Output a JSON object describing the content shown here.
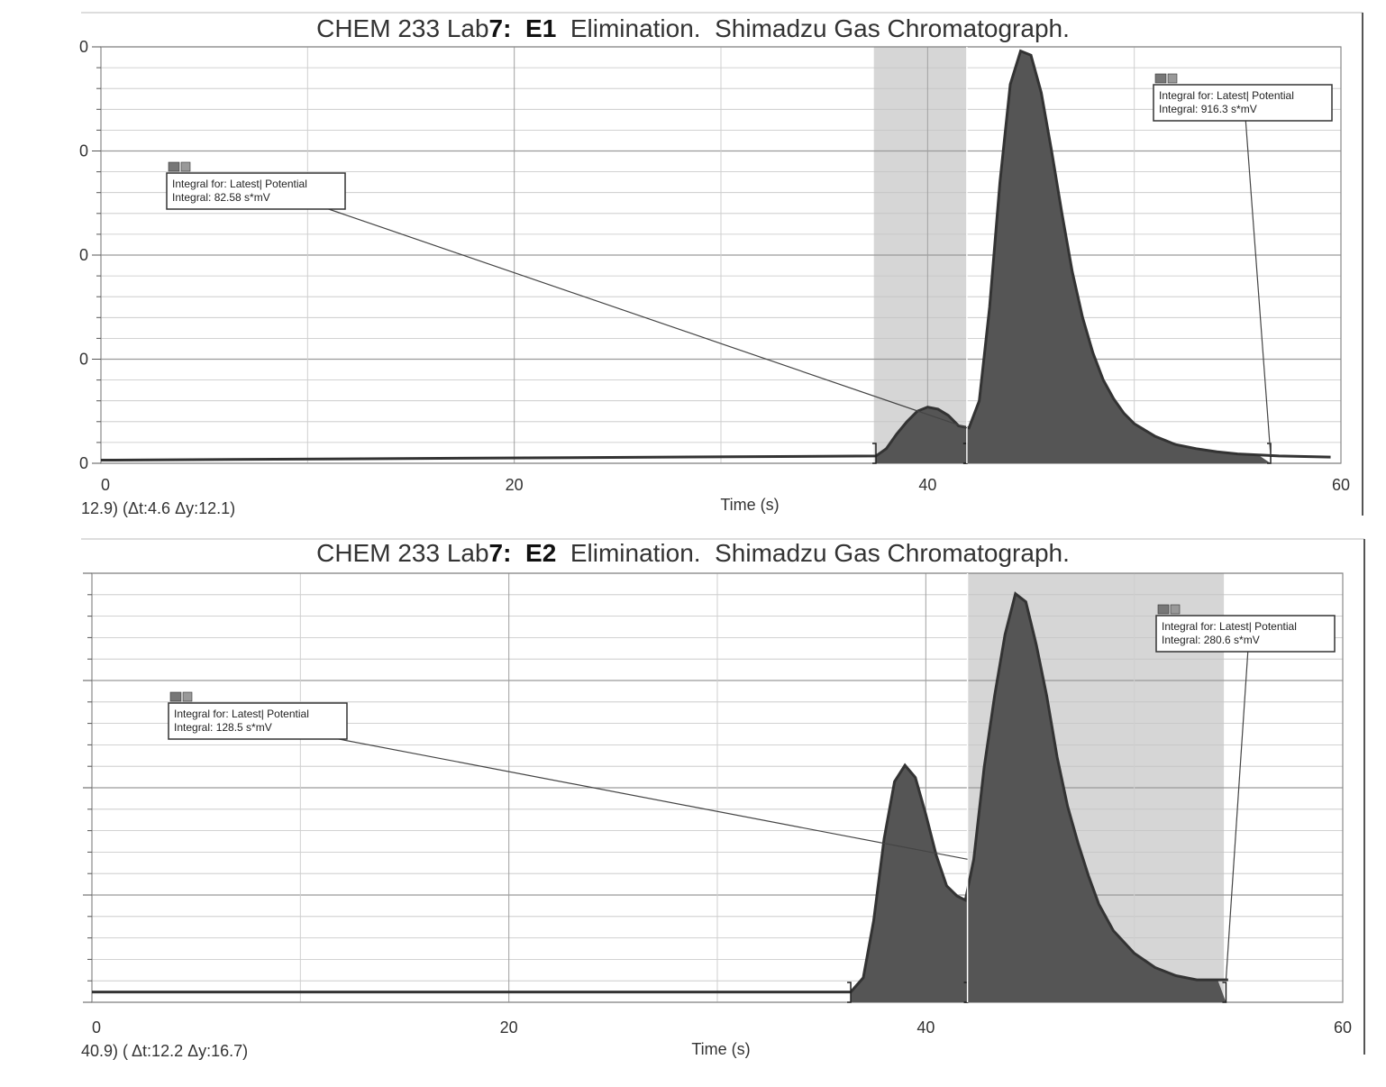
{
  "chart_data": [
    {
      "type": "area",
      "title": {
        "prefix": "CHEM 233 Lab",
        "lab_number": "7:",
        "experiment": "E1",
        "suffix": "Elimination.  Shimadzu Gas Chromatograph."
      },
      "xlabel": "Time (s)",
      "ylabel": "",
      "xlim": [
        0,
        60
      ],
      "ylim": [
        0,
        200
      ],
      "x_ticks": [
        "0",
        "20",
        "40",
        "60"
      ],
      "y_tick_labels": [
        "0",
        "0",
        "0",
        "0",
        "0"
      ],
      "grid": true,
      "readout": "12.9) (Δt:4.6 Δy:12.1)",
      "series": [
        {
          "x": [
            0,
            37.5,
            38.0,
            38.5,
            39.0,
            39.5,
            40.0,
            40.5,
            41.0,
            41.5,
            42.0,
            42.5,
            43.0,
            43.5,
            44.0,
            44.5,
            45.0,
            45.5,
            46.0,
            46.5,
            47.0,
            47.5,
            48.0,
            48.5,
            49.0,
            49.5,
            50.0,
            51.0,
            52.0,
            53.0,
            54.0,
            55.0,
            56.0,
            57.0,
            59.5
          ],
          "y": [
            1.5,
            3.5,
            7,
            14,
            20,
            25,
            27,
            26,
            23,
            18,
            17,
            30,
            75,
            135,
            182,
            198,
            196,
            178,
            150,
            120,
            92,
            70,
            53,
            40,
            31,
            24,
            19,
            13,
            9,
            7,
            5.5,
            4.5,
            4,
            3.5,
            3
          ]
        }
      ],
      "highlight_range": [
        37.4,
        41.9
      ],
      "integrals": [
        {
          "label": "Integral for: Latest| Potential",
          "value": "Integral: 82.58 s*mV",
          "range": [
            37.5,
            41.9
          ]
        },
        {
          "label": "Integral for: Latest| Potential",
          "value": "Integral: 916.3 s*mV",
          "range": [
            41.9,
            56.6
          ]
        }
      ]
    },
    {
      "type": "area",
      "title": {
        "prefix": "CHEM 233 Lab",
        "lab_number": "7:",
        "experiment": "E2",
        "suffix": "Elimination.  Shimadzu Gas Chromatograph."
      },
      "xlabel": "Time (s)",
      "ylabel": "",
      "xlim": [
        0,
        60
      ],
      "ylim": [
        0,
        210
      ],
      "x_ticks": [
        "0",
        "20",
        "40",
        "60"
      ],
      "grid": true,
      "readout": "40.9) ( Δt:12.2 Δy:16.7)",
      "series": [
        {
          "x": [
            0,
            36.4,
            37.0,
            37.5,
            38.0,
            38.5,
            39.0,
            39.5,
            40.0,
            40.5,
            41.0,
            41.5,
            41.9,
            42.3,
            42.8,
            43.3,
            43.8,
            44.3,
            44.8,
            45.3,
            45.8,
            46.3,
            46.8,
            47.3,
            47.8,
            48.3,
            49.0,
            50.0,
            51.0,
            52.0,
            53.0,
            54.0,
            54.5
          ],
          "y": [
            5,
            5,
            12,
            40,
            80,
            108,
            116,
            110,
            92,
            72,
            57,
            52,
            50,
            70,
            115,
            150,
            180,
            200,
            196,
            175,
            150,
            120,
            96,
            78,
            62,
            48,
            35,
            24,
            17,
            13,
            11,
            11,
            11
          ]
        }
      ],
      "highlight_range": [
        42.0,
        54.3
      ],
      "integrals": [
        {
          "label": "Integral for: Latest| Potential",
          "value": "Integral: 128.5 s*mV",
          "range": [
            36.4,
            42.0
          ]
        },
        {
          "label": "Integral for: Latest| Potential",
          "value": "Integral: 280.6 s*mV",
          "range": [
            42.0,
            54.4
          ]
        }
      ]
    }
  ]
}
